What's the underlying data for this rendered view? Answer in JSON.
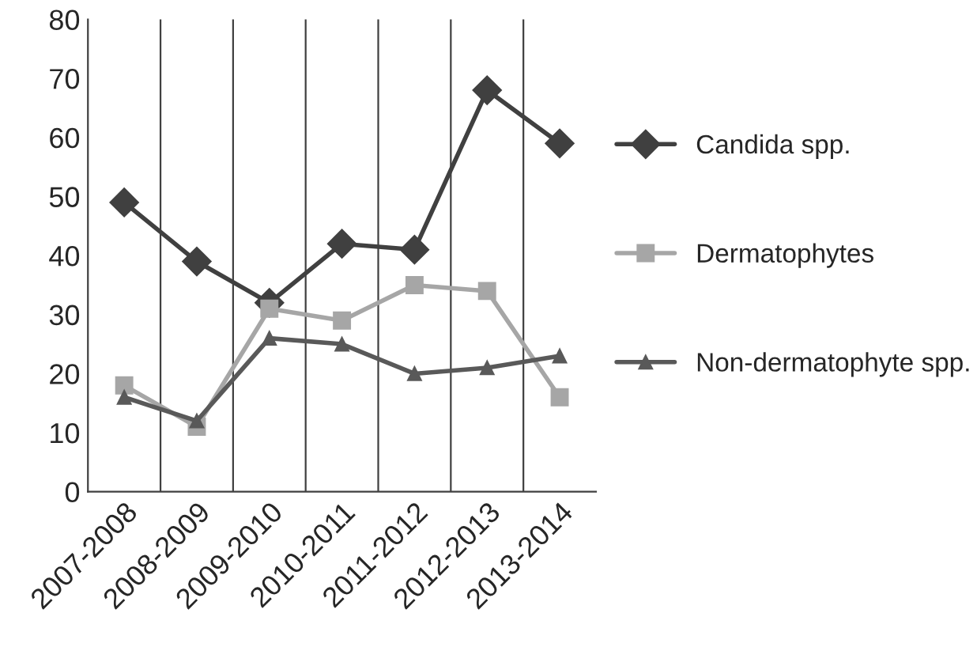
{
  "chart_data": {
    "type": "line",
    "categories": [
      "2007-2008",
      "2008-2009",
      "2009-2010",
      "2010-2011",
      "2011-2012",
      "2012-2013",
      "2013-2014"
    ],
    "series": [
      {
        "name": "Candida spp.",
        "color": "#404040",
        "marker": "diamond",
        "values": [
          49,
          39,
          32,
          42,
          41,
          68,
          59
        ]
      },
      {
        "name": "Dermatophytes",
        "color": "#a6a6a6",
        "marker": "square",
        "values": [
          18,
          11,
          31,
          29,
          35,
          34,
          16
        ]
      },
      {
        "name": "Non-dermatophyte spp.",
        "color": "#595959",
        "marker": "triangle",
        "values": [
          16,
          12,
          26,
          25,
          20,
          21,
          23
        ]
      }
    ],
    "ylim": [
      0,
      80
    ],
    "yticks": [
      0,
      10,
      20,
      30,
      40,
      50,
      60,
      70,
      80
    ],
    "grid": "x",
    "legend": "right",
    "line_style": "solid"
  }
}
